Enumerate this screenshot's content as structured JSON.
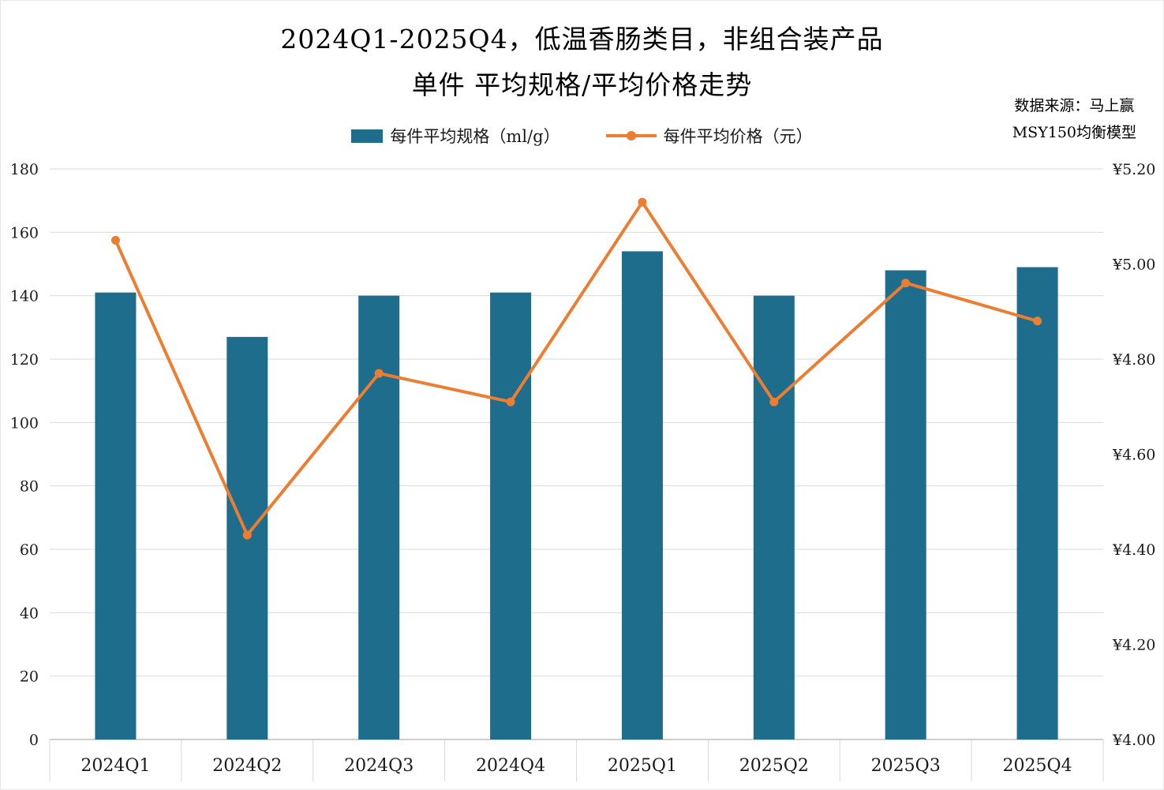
{
  "title": {
    "line1": "2024Q1-2025Q4，低温香肠类目，非组合装产品",
    "line2": "单件 平均规格/平均价格走势"
  },
  "source": {
    "line1": "数据来源：马上赢",
    "line2": "MSY150均衡模型"
  },
  "legend": {
    "spec_label": "每件平均规格（ml/g）",
    "price_label": "每件平均价格（元）"
  },
  "colors": {
    "bar": "#1E6D8C",
    "line": "#ED7D31",
    "grid": "#D9D9D9",
    "axis": "#BFBFBF",
    "text": "#1A1A1A"
  },
  "chart_data": {
    "type": "bar",
    "combo": "bar + line (dual axis)",
    "title": "2024Q1-2025Q4，低温香肠类目，非组合装产品 单件 平均规格/平均价格走势",
    "categories": [
      "2024Q1",
      "2024Q2",
      "2024Q3",
      "2024Q4",
      "2025Q1",
      "2025Q2",
      "2025Q3",
      "2025Q4"
    ],
    "series": [
      {
        "name": "每件平均规格（ml/g）",
        "type": "bar",
        "axis": "left",
        "color": "#1E6D8C",
        "values": [
          141,
          127,
          140,
          141,
          154,
          140,
          148,
          149
        ]
      },
      {
        "name": "每件平均价格（元）",
        "type": "line",
        "axis": "right",
        "color": "#ED7D31",
        "values": [
          5.05,
          4.43,
          4.77,
          4.71,
          5.13,
          4.71,
          4.96,
          4.88
        ]
      }
    ],
    "left_axis": {
      "min": 0,
      "max": 180,
      "step": 20,
      "tick_labels": [
        "0",
        "20",
        "40",
        "60",
        "80",
        "100",
        "120",
        "140",
        "160",
        "180"
      ]
    },
    "right_axis": {
      "min": 4.0,
      "max": 5.2,
      "step": 0.2,
      "prefix": "¥",
      "tick_labels": [
        "¥4.00",
        "¥4.20",
        "¥4.40",
        "¥4.60",
        "¥4.80",
        "¥5.00",
        "¥5.20"
      ]
    },
    "grid": true,
    "legend_position": "top",
    "source": "数据来源：马上赢 MSY150均衡模型"
  }
}
